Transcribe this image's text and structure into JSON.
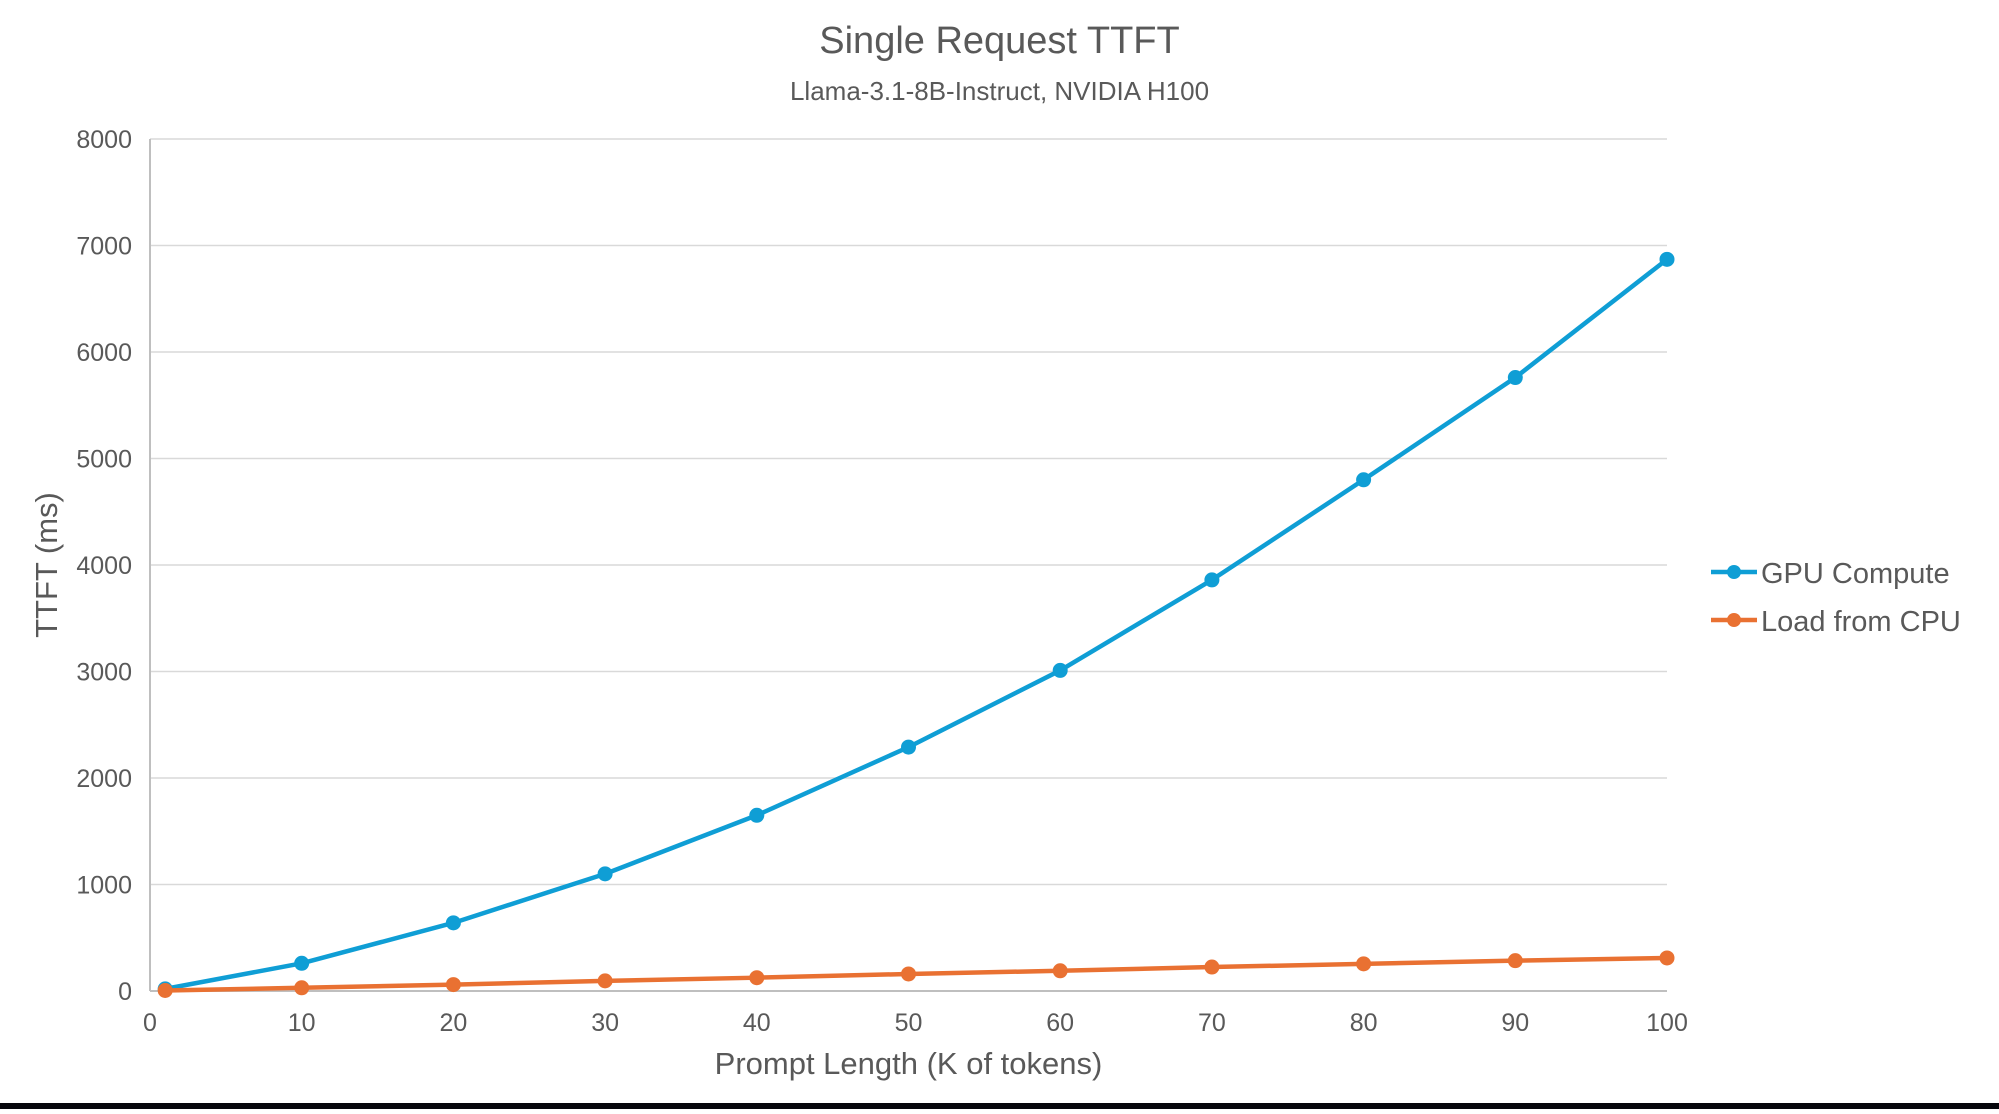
{
  "page": {
    "background": "#FFFFFF",
    "bottom_bar_color": "#06060C"
  },
  "chart_data": {
    "type": "line",
    "title": "Single Request TTFT",
    "subtitle": "Llama-3.1-8B-Instruct, NVIDIA H100",
    "xlabel": "Prompt Length (K of tokens)",
    "ylabel": "TTFT (ms)",
    "x": [
      1,
      10,
      20,
      30,
      40,
      50,
      60,
      70,
      80,
      90,
      100
    ],
    "series": [
      {
        "name": "GPU Compute",
        "color": "#0F9ED5",
        "values": [
          20,
          260,
          640,
          1100,
          1650,
          2290,
          3010,
          3860,
          4800,
          5760,
          6870
        ]
      },
      {
        "name": "Load from CPU",
        "color": "#E97132",
        "values": [
          5,
          30,
          60,
          95,
          125,
          160,
          190,
          225,
          255,
          285,
          310
        ]
      }
    ],
    "xlim": [
      0,
      100
    ],
    "ylim": [
      0,
      8000
    ],
    "x_ticks": [
      0,
      10,
      20,
      30,
      40,
      50,
      60,
      70,
      80,
      90,
      100
    ],
    "y_ticks": [
      0,
      1000,
      2000,
      3000,
      4000,
      5000,
      6000,
      7000,
      8000
    ],
    "grid": "horizontal-major",
    "gridline_color": "#D9D9D9",
    "axis_line_color": "#BFBFBF",
    "text_color": "#595959",
    "tick_font_size": 25,
    "legend_position": "right",
    "marker": "circle"
  }
}
